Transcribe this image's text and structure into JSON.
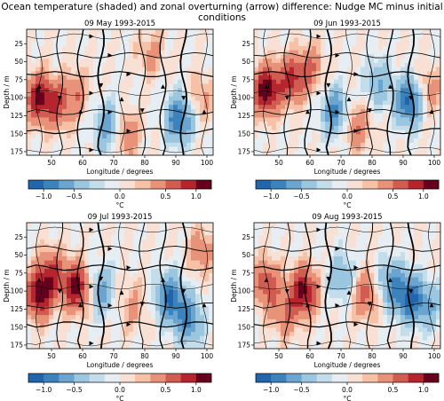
{
  "suptitle": "Ocean temperature (shaded) and zonal overturning (arrow) difference: Nudge MC minus initial conditions",
  "colorbar": {
    "colors": [
      "#2166ac",
      "#3c83bc",
      "#6ba5cf",
      "#9ac6e0",
      "#c4ddeb",
      "#e6eef3",
      "#f8e1d4",
      "#f6c1a6",
      "#e9927a",
      "#d15c51",
      "#b5252d",
      "#67001f"
    ],
    "bounds": [
      -1.25,
      -1.0,
      -0.75,
      -0.5,
      -0.25,
      -0.125,
      0.0,
      0.125,
      0.25,
      0.5,
      0.75,
      1.0,
      1.25
    ],
    "ticks": [
      -1.0,
      -0.5,
      0.0,
      0.5,
      1.0
    ],
    "tick_labels": [
      "−1.0",
      "−0.5",
      "0.0",
      "0.5",
      "1.0"
    ],
    "label": "°C"
  },
  "chart_data": [
    {
      "type": "heatmap",
      "title": "09 May 1993-2015",
      "xlabel": "Longitude / degrees",
      "ylabel": "Depth / m",
      "xlim": [
        42,
        102
      ],
      "ylim": [
        180,
        5
      ],
      "xticks": [
        50,
        60,
        70,
        80,
        90,
        100
      ],
      "yticks": [
        25,
        50,
        75,
        100,
        125,
        150,
        175
      ],
      "anomalies": [
        {
          "lon": 46,
          "depth": 100,
          "value": 1.0
        },
        {
          "lon": 52,
          "depth": 110,
          "value": 0.6
        },
        {
          "lon": 58,
          "depth": 95,
          "value": 0.4
        },
        {
          "lon": 68,
          "depth": 140,
          "value": -0.7
        },
        {
          "lon": 74,
          "depth": 150,
          "value": 0.5
        },
        {
          "lon": 82,
          "depth": 40,
          "value": 0.3
        },
        {
          "lon": 91,
          "depth": 130,
          "value": -1.0
        },
        {
          "lon": 98,
          "depth": 100,
          "value": 0.3
        }
      ]
    },
    {
      "type": "heatmap",
      "title": "09 Jun 1993-2015",
      "xlabel": "Longitude / degrees",
      "ylabel": "Depth / m",
      "xlim": [
        42,
        102
      ],
      "ylim": [
        180,
        5
      ],
      "xticks": [
        50,
        60,
        70,
        80,
        90,
        100
      ],
      "yticks": [
        25,
        50,
        75,
        100,
        125,
        150,
        175
      ],
      "anomalies": [
        {
          "lon": 46,
          "depth": 90,
          "value": 1.2
        },
        {
          "lon": 54,
          "depth": 75,
          "value": 0.8
        },
        {
          "lon": 60,
          "depth": 60,
          "value": 0.5
        },
        {
          "lon": 68,
          "depth": 120,
          "value": -0.8
        },
        {
          "lon": 75,
          "depth": 140,
          "value": 0.5
        },
        {
          "lon": 82,
          "depth": 80,
          "value": -0.5
        },
        {
          "lon": 92,
          "depth": 105,
          "value": -1.1
        },
        {
          "lon": 98,
          "depth": 90,
          "value": 0.4
        }
      ]
    },
    {
      "type": "heatmap",
      "title": "09 Jul 1993-2015",
      "xlabel": "Longitude / degrees",
      "ylabel": "Depth / m",
      "xlim": [
        42,
        102
      ],
      "ylim": [
        180,
        5
      ],
      "xticks": [
        50,
        60,
        70,
        80,
        90,
        100
      ],
      "yticks": [
        25,
        50,
        75,
        100,
        125,
        150,
        175
      ],
      "anomalies": [
        {
          "lon": 46,
          "depth": 105,
          "value": 1.1
        },
        {
          "lon": 50,
          "depth": 75,
          "value": 0.7
        },
        {
          "lon": 58,
          "depth": 95,
          "value": 1.1
        },
        {
          "lon": 66,
          "depth": 100,
          "value": -0.6
        },
        {
          "lon": 76,
          "depth": 120,
          "value": 0.3
        },
        {
          "lon": 88,
          "depth": 110,
          "value": -1.0
        },
        {
          "lon": 94,
          "depth": 140,
          "value": -0.8
        },
        {
          "lon": 98,
          "depth": 45,
          "value": 0.4
        }
      ]
    },
    {
      "type": "heatmap",
      "title": "09 Aug 1993-2015",
      "xlabel": "Longitude / degrees",
      "ylabel": "Depth / m",
      "xlim": [
        42,
        102
      ],
      "ylim": [
        180,
        5
      ],
      "xticks": [
        50,
        60,
        70,
        80,
        90,
        100
      ],
      "yticks": [
        25,
        50,
        75,
        100,
        125,
        150,
        175
      ],
      "anomalies": [
        {
          "lon": 46,
          "depth": 90,
          "value": 0.7
        },
        {
          "lon": 58,
          "depth": 100,
          "value": 1.1
        },
        {
          "lon": 52,
          "depth": 130,
          "value": 0.5
        },
        {
          "lon": 70,
          "depth": 80,
          "value": -0.5
        },
        {
          "lon": 78,
          "depth": 105,
          "value": 0.6
        },
        {
          "lon": 86,
          "depth": 90,
          "value": -0.7
        },
        {
          "lon": 92,
          "depth": 110,
          "value": -1.0
        },
        {
          "lon": 98,
          "depth": 120,
          "value": -0.5
        }
      ]
    }
  ]
}
